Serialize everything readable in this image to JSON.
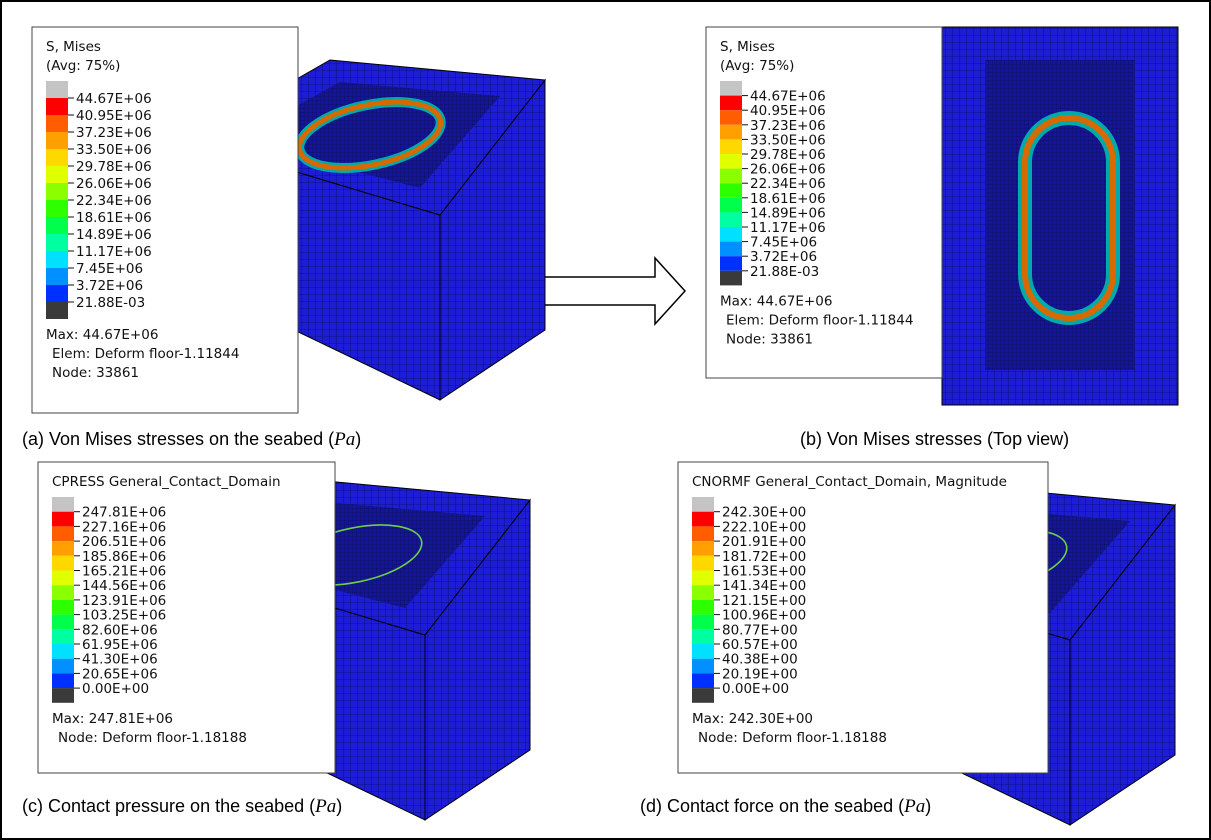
{
  "panels": [
    {
      "legend": {
        "title": [
          "S, Mises",
          "(Avg: 75%)"
        ],
        "colorbar_labels": [
          "44.67E+06",
          "40.95E+06",
          "37.23E+06",
          "33.50E+06",
          "29.78E+06",
          "26.06E+06",
          "22.34E+06",
          "18.61E+06",
          "14.89E+06",
          "11.17E+06",
          "7.45E+06",
          "3.72E+06",
          "21.88E-03"
        ],
        "footer": [
          "Max:  44.67E+06",
          "Elem: Deform floor-1.11844",
          "Node: 33861"
        ]
      },
      "caption": {
        "text": "(a) Von Mises stresses on the seabed (",
        "unit": "Pa",
        "close": ")"
      }
    },
    {
      "legend": {
        "title": [
          "S, Mises",
          "(Avg: 75%)"
        ],
        "colorbar_labels": [
          "44.67E+06",
          "40.95E+06",
          "37.23E+06",
          "33.50E+06",
          "29.78E+06",
          "26.06E+06",
          "22.34E+06",
          "18.61E+06",
          "14.89E+06",
          "11.17E+06",
          "7.45E+06",
          "3.72E+06",
          "21.88E-03"
        ],
        "footer": [
          "Max:  44.67E+06",
          "Elem: Deform floor-1.11844",
          "Node: 33861"
        ]
      },
      "caption": {
        "text": "(b) Von Mises stresses (Top view)"
      }
    },
    {
      "legend": {
        "title": [
          "CPRESS   General_Contact_Domain"
        ],
        "colorbar_labels": [
          "247.81E+06",
          "227.16E+06",
          "206.51E+06",
          "185.86E+06",
          "165.21E+06",
          "144.56E+06",
          "123.91E+06",
          "103.25E+06",
          "82.60E+06",
          "61.95E+06",
          "41.30E+06",
          "20.65E+06",
          "0.00E+00"
        ],
        "footer": [
          "Max: 247.81E+06",
          "Node: Deform floor-1.18188"
        ]
      },
      "caption": {
        "text": "(c) Contact pressure on the seabed (",
        "unit": "Pa",
        "close": ")"
      }
    },
    {
      "legend": {
        "title": [
          "CNORMF   General_Contact_Domain, Magnitude"
        ],
        "colorbar_labels": [
          "242.30E+00",
          "222.10E+00",
          "201.91E+00",
          "181.72E+00",
          "161.53E+00",
          "141.34E+00",
          "121.15E+00",
          "100.96E+00",
          "80.77E+00",
          "60.57E+00",
          "40.38E+00",
          "20.19E+00",
          "0.00E+00"
        ],
        "footer": [
          "Max: 242.30E+00",
          "Node: Deform floor-1.18188"
        ]
      },
      "caption": {
        "text": "(d) Contact force on the seabed (",
        "unit": "Pa",
        "close": ")"
      }
    }
  ]
}
